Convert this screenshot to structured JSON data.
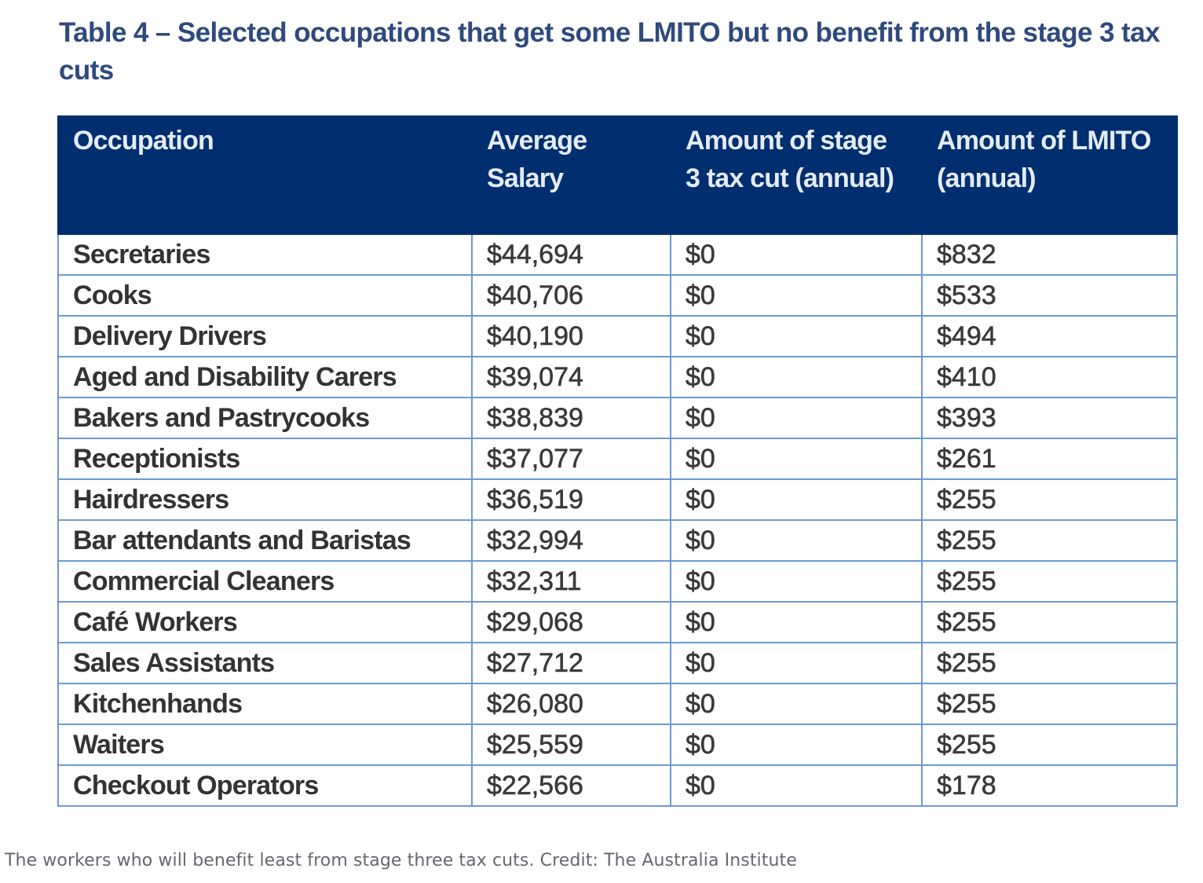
{
  "title": "Table 4 – Selected occupations that get some LMITO but no benefit from the stage 3 tax cuts",
  "table": {
    "headers": [
      "Occupation",
      "Average Salary",
      "Amount of stage 3 tax cut (annual)",
      "Amount of LMITO (annual)"
    ],
    "rows": [
      [
        "Secretaries",
        "$44,694",
        "$0",
        "$832"
      ],
      [
        "Cooks",
        "$40,706",
        "$0",
        "$533"
      ],
      [
        "Delivery Drivers",
        "$40,190",
        "$0",
        "$494"
      ],
      [
        "Aged and Disability Carers",
        "$39,074",
        "$0",
        "$410"
      ],
      [
        "Bakers and Pastrycooks",
        "$38,839",
        "$0",
        "$393"
      ],
      [
        "Receptionists",
        "$37,077",
        "$0",
        "$261"
      ],
      [
        "Hairdressers",
        "$36,519",
        "$0",
        "$255"
      ],
      [
        "Bar attendants and Baristas",
        "$32,994",
        "$0",
        "$255"
      ],
      [
        "Commercial Cleaners",
        "$32,311",
        "$0",
        "$255"
      ],
      [
        "Café Workers",
        "$29,068",
        "$0",
        "$255"
      ],
      [
        "Sales Assistants",
        "$27,712",
        "$0",
        "$255"
      ],
      [
        "Kitchenhands",
        "$26,080",
        "$0",
        "$255"
      ],
      [
        "Waiters",
        "$25,559",
        "$0",
        "$255"
      ],
      [
        "Checkout Operators",
        "$22,566",
        "$0",
        "$178"
      ]
    ]
  },
  "caption": "The workers who will benefit least from stage three tax cuts. Credit: The Australia Institute",
  "colors": {
    "title_text": "#2e4a7d",
    "header_background": "#002e6e",
    "header_text": "#e4ebf5",
    "grid_lines": "#6b9bd2",
    "caption_text": "#666670"
  }
}
